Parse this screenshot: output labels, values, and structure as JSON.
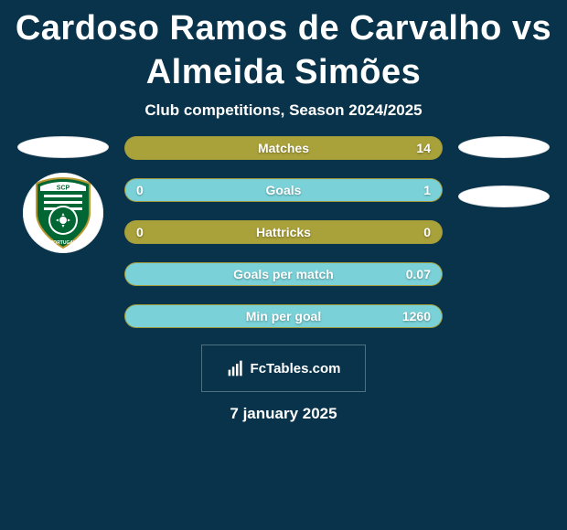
{
  "colors": {
    "background": "#08334a",
    "text": "#ffffff",
    "olive": "#a9a13a",
    "teal": "#7ad2d8",
    "footer_border": "#51707f",
    "ellipse_bg": "#ffffff"
  },
  "title": "Cardoso Ramos de Carvalho vs Almeida Simões",
  "subtitle": "Club competitions, Season 2024/2025",
  "left_player": {
    "avatar_placeholder": true,
    "has_club_logo": true,
    "club_logo": "SCP"
  },
  "right_player": {
    "avatar_placeholder": true,
    "second_placeholder": true
  },
  "bars": [
    {
      "label": "Matches",
      "left": "",
      "right": "14",
      "left_pct": 0,
      "right_pct": 100,
      "left_color": "#a9a13a",
      "right_color": "#a9a13a",
      "base_color": "#a9a13a"
    },
    {
      "label": "Goals",
      "left": "0",
      "right": "1",
      "left_pct": 0,
      "right_pct": 100,
      "left_color": "#a9a13a",
      "right_color": "#7ad2d8",
      "base_color": "#a9a13a"
    },
    {
      "label": "Hattricks",
      "left": "0",
      "right": "0",
      "left_pct": 50,
      "right_pct": 50,
      "left_color": "#a9a13a",
      "right_color": "#a9a13a",
      "base_color": "#a9a13a"
    },
    {
      "label": "Goals per match",
      "left": "",
      "right": "0.07",
      "left_pct": 0,
      "right_pct": 100,
      "left_color": "#a9a13a",
      "right_color": "#7ad2d8",
      "base_color": "#a9a13a"
    },
    {
      "label": "Min per goal",
      "left": "",
      "right": "1260",
      "left_pct": 0,
      "right_pct": 100,
      "left_color": "#a9a13a",
      "right_color": "#7ad2d8",
      "base_color": "#a9a13a"
    }
  ],
  "footer_brand": "FcTables.com",
  "date": "7 january 2025"
}
